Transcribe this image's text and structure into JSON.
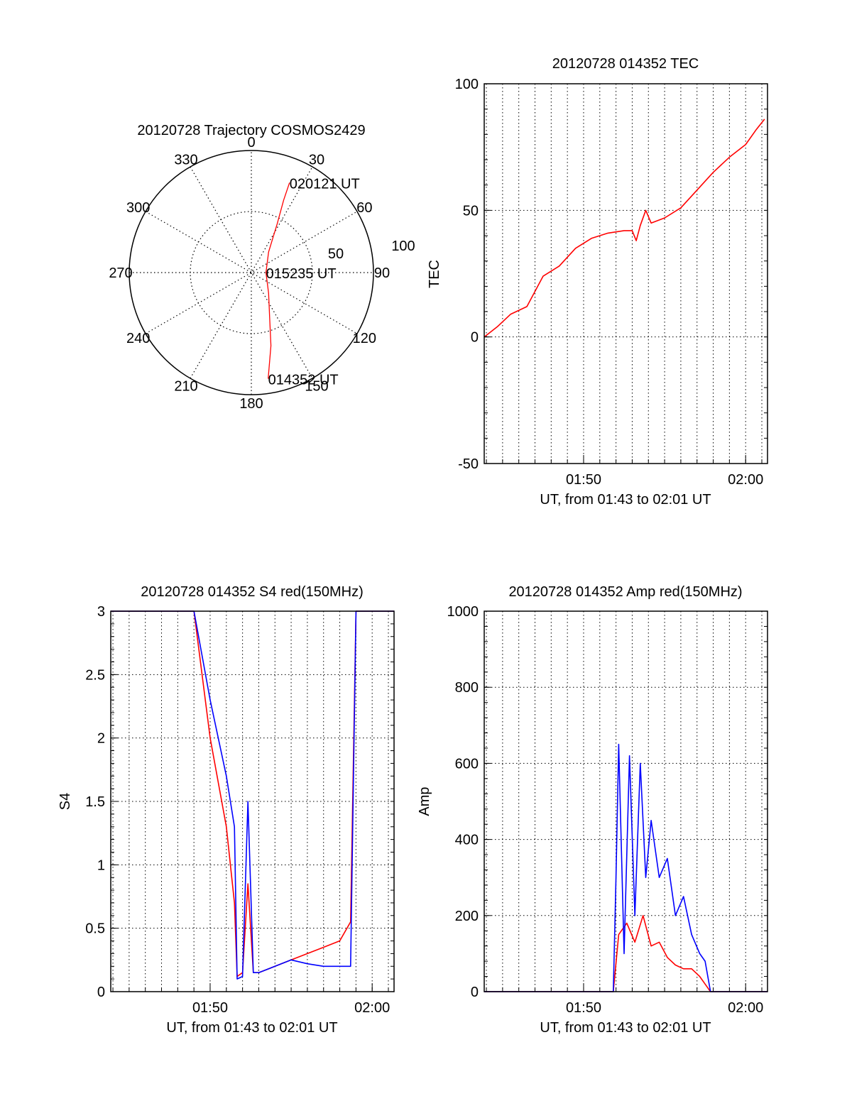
{
  "chart_data": [
    {
      "type": "polar",
      "title": "20120728 Trajectory COSMOS2429",
      "azimuth_labels": [
        "0",
        "30",
        "60",
        "90",
        "120",
        "150",
        "180",
        "210",
        "240",
        "270",
        "300",
        "330"
      ],
      "radial_labels": [
        "50",
        "100"
      ],
      "rlim": [
        0,
        100
      ],
      "grid": true,
      "series": [
        {
          "color": "#ff0000",
          "points": [
            {
              "az": 171,
              "r": 88
            },
            {
              "az": 165,
              "r": 62
            },
            {
              "az": 158,
              "r": 40
            },
            {
              "az": 140,
              "r": 22
            },
            {
              "az": 90,
              "r": 12
            },
            {
              "az": 40,
              "r": 22
            },
            {
              "az": 28,
              "r": 45
            },
            {
              "az": 24,
              "r": 65
            },
            {
              "az": 23,
              "r": 80
            }
          ]
        }
      ],
      "annotations": [
        {
          "text": "020121 UT",
          "az": 23,
          "r": 80
        },
        {
          "text": "015235 UT",
          "az": 90,
          "r": 12
        },
        {
          "text": "014352 UT",
          "az": 171,
          "r": 88
        }
      ]
    },
    {
      "type": "line",
      "title": "20120728 014352 TEC",
      "xlabel": "UT, from 01:43 to 02:01 UT",
      "ylabel": "TEC",
      "xlim": [
        "01:43:52",
        "02:01:21"
      ],
      "ylim": [
        -50,
        100
      ],
      "xticks": [
        "01:50",
        "02:00"
      ],
      "yticks": [
        "-50",
        "0",
        "50",
        "100"
      ],
      "grid": true,
      "series": [
        {
          "color": "#ff0000",
          "x": [
            "01:43:52",
            "01:44:40",
            "01:45:30",
            "01:46:30",
            "01:47:30",
            "01:48:30",
            "01:49:30",
            "01:50:30",
            "01:51:30",
            "01:52:30",
            "01:53:00",
            "01:53:15",
            "01:53:30",
            "01:53:50",
            "01:54:10",
            "01:55:00",
            "01:56:00",
            "01:57:00",
            "01:58:00",
            "01:59:00",
            "02:00:00",
            "02:00:40",
            "02:01:10"
          ],
          "y": [
            0,
            4,
            9,
            12,
            24,
            28,
            35,
            39,
            41,
            42,
            42,
            38,
            44,
            50,
            45,
            47,
            51,
            58,
            65,
            71,
            76,
            82,
            86
          ]
        }
      ]
    },
    {
      "type": "line",
      "title": "20120728 014352 S4 red(150MHz)",
      "xlabel": "UT, from 01:43 to 02:01 UT",
      "ylabel": "S4",
      "xlim": [
        "01:43:52",
        "02:01:21"
      ],
      "ylim": [
        0,
        3
      ],
      "xticks": [
        "01:50",
        "02:00"
      ],
      "yticks": [
        "0",
        "0.5",
        "1",
        "1.5",
        "2",
        "2.5",
        "3"
      ],
      "grid": true,
      "series": [
        {
          "color": "#ff0000",
          "x": [
            "01:43:52",
            "01:49:00",
            "01:50:00",
            "01:51:00",
            "01:51:30",
            "01:51:40",
            "01:52:00",
            "01:52:20",
            "01:52:40",
            "01:53:00",
            "01:54:00",
            "01:55:00",
            "01:56:00",
            "01:57:00",
            "01:58:00",
            "01:58:40",
            "01:59:00",
            "02:01:21"
          ],
          "y": [
            3,
            3,
            2.0,
            1.3,
            0.7,
            0.12,
            0.15,
            0.85,
            0.15,
            0.15,
            0.2,
            0.25,
            0.3,
            0.35,
            0.4,
            0.55,
            3,
            3
          ]
        },
        {
          "color": "#0000ff",
          "x": [
            "01:43:52",
            "01:49:00",
            "01:50:00",
            "01:51:00",
            "01:51:30",
            "01:51:40",
            "01:52:00",
            "01:52:20",
            "01:52:40",
            "01:53:00",
            "01:54:00",
            "01:55:00",
            "01:56:00",
            "01:57:00",
            "01:58:00",
            "01:58:40",
            "01:59:00",
            "02:01:21"
          ],
          "y": [
            3,
            3,
            2.3,
            1.7,
            1.3,
            0.1,
            0.12,
            1.5,
            0.15,
            0.15,
            0.2,
            0.25,
            0.22,
            0.2,
            0.2,
            0.2,
            3,
            3
          ]
        }
      ]
    },
    {
      "type": "line",
      "title": "20120728 014352 Amp red(150MHz)",
      "xlabel": "UT, from 01:43 to 02:01 UT",
      "ylabel": "Amp",
      "xlim": [
        "01:43:52",
        "02:01:21"
      ],
      "ylim": [
        0,
        1000
      ],
      "xticks": [
        "01:50",
        "02:00"
      ],
      "yticks": [
        "0",
        "200",
        "400",
        "600",
        "800",
        "1000"
      ],
      "grid": true,
      "series": [
        {
          "color": "#ff0000",
          "x": [
            "01:43:52",
            "01:51:50",
            "01:52:10",
            "01:52:40",
            "01:53:10",
            "01:53:40",
            "01:54:10",
            "01:54:40",
            "01:55:10",
            "01:55:40",
            "01:56:10",
            "01:56:40",
            "01:57:10",
            "01:57:30",
            "01:57:50",
            "02:01:21"
          ],
          "y": [
            0,
            0,
            150,
            180,
            130,
            200,
            120,
            130,
            90,
            70,
            60,
            60,
            40,
            20,
            0,
            0
          ]
        },
        {
          "color": "#0000ff",
          "x": [
            "01:43:52",
            "01:51:50",
            "01:52:00",
            "01:52:10",
            "01:52:30",
            "01:52:50",
            "01:53:10",
            "01:53:30",
            "01:53:50",
            "01:54:10",
            "01:54:40",
            "01:55:10",
            "01:55:40",
            "01:56:10",
            "01:56:40",
            "01:57:10",
            "01:57:30",
            "01:57:50",
            "02:01:21"
          ],
          "y": [
            0,
            0,
            300,
            650,
            100,
            620,
            200,
            600,
            300,
            450,
            300,
            350,
            200,
            250,
            150,
            100,
            80,
            0,
            0
          ]
        }
      ]
    }
  ]
}
